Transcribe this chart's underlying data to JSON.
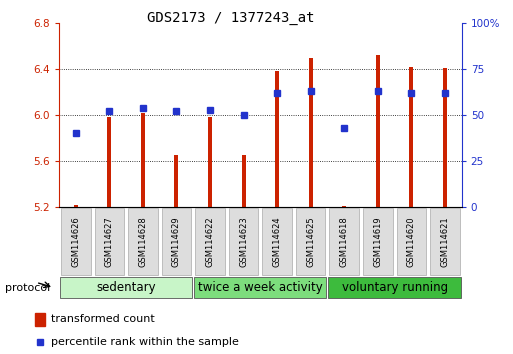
{
  "title": "GDS2173 / 1377243_at",
  "samples": [
    "GSM114626",
    "GSM114627",
    "GSM114628",
    "GSM114629",
    "GSM114622",
    "GSM114623",
    "GSM114624",
    "GSM114625",
    "GSM114618",
    "GSM114619",
    "GSM114620",
    "GSM114621"
  ],
  "transformed_count": [
    5.22,
    5.98,
    6.02,
    5.65,
    5.98,
    5.65,
    6.38,
    6.5,
    5.21,
    6.52,
    6.42,
    6.41
  ],
  "percentile_rank": [
    40,
    52,
    54,
    52,
    53,
    50,
    62,
    63,
    43,
    63,
    62,
    62
  ],
  "groups": [
    {
      "label": "sedentary",
      "start": 0,
      "end": 4,
      "color": "#c8f5c8"
    },
    {
      "label": "twice a week activity",
      "start": 4,
      "end": 8,
      "color": "#7ddd7d"
    },
    {
      "label": "voluntary running",
      "start": 8,
      "end": 12,
      "color": "#3dbb3d"
    }
  ],
  "ylim_left": [
    5.2,
    6.8
  ],
  "ylim_right": [
    0,
    100
  ],
  "yticks_left": [
    5.2,
    5.6,
    6.0,
    6.4,
    6.8
  ],
  "yticks_right": [
    0,
    25,
    50,
    75,
    100
  ],
  "bar_color": "#cc2200",
  "dot_color": "#2233cc",
  "bar_bottom": 5.2,
  "bar_width": 0.12,
  "protocol_label": "protocol",
  "legend_bar_label": "transformed count",
  "legend_dot_label": "percentile rank within the sample",
  "title_fontsize": 10,
  "tick_fontsize": 7.5,
  "sample_fontsize": 6,
  "group_label_fontsize": 8.5
}
